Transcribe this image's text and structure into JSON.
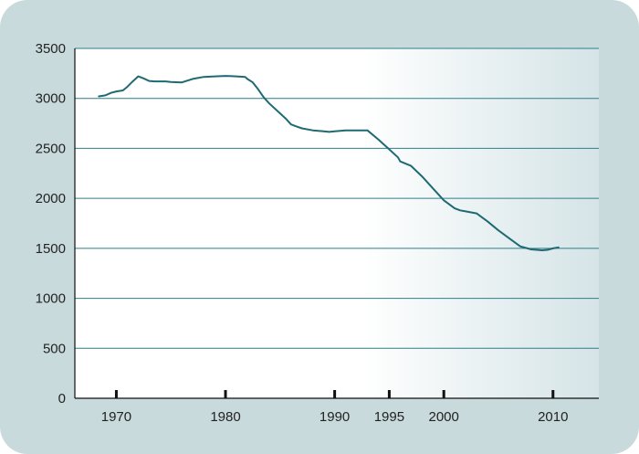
{
  "chart_data": {
    "type": "line",
    "title": "",
    "xlabel": "",
    "ylabel": "",
    "xlim": [
      1966.2,
      2014.2
    ],
    "ylim": [
      0,
      3500
    ],
    "yticks": [
      0,
      500,
      1000,
      1500,
      2000,
      2500,
      3000,
      3500
    ],
    "xticks": [
      1970,
      1980,
      1990,
      1995,
      2000,
      2010
    ],
    "grid": "horizontal",
    "colors": {
      "line": "#1f6a72",
      "grid": "#2c7f88",
      "axis": "#111111",
      "frame": "#c9dadd"
    },
    "series": [
      {
        "x": [
          1968.4,
          1969.0,
          1969.5,
          1970.0,
          1970.6,
          1971.0,
          1971.5,
          1972.0,
          1972.5,
          1973.0,
          1973.5,
          1974.0,
          1974.5,
          1975.0,
          1976.0,
          1977.0,
          1978.0,
          1979.0,
          1980.0,
          1981.0,
          1981.8,
          1982.0,
          1982.5,
          1983.0,
          1983.5,
          1984.0,
          1985.0,
          1985.5,
          1986.0,
          1986.5,
          1987.0,
          1988.0,
          1989.0,
          1989.5,
          1990.0,
          1991.0,
          1992.0,
          1993.0,
          1994.0,
          1995.0,
          1995.8,
          1996.0,
          1997.0,
          1998.0,
          1999.0,
          2000.0,
          2001.0,
          2001.5,
          2002.0,
          2003.0,
          2003.5,
          2004.0,
          2005.0,
          2006.0,
          2006.5,
          2007.0,
          2008.0,
          2009.0,
          2009.5,
          2010.0,
          2010.5
        ],
        "y": [
          3020,
          3030,
          3055,
          3070,
          3080,
          3115,
          3170,
          3220,
          3200,
          3175,
          3170,
          3170,
          3170,
          3165,
          3160,
          3195,
          3215,
          3220,
          3225,
          3220,
          3215,
          3195,
          3160,
          3090,
          3010,
          2950,
          2850,
          2800,
          2740,
          2720,
          2700,
          2680,
          2670,
          2665,
          2670,
          2680,
          2680,
          2680,
          2590,
          2490,
          2410,
          2370,
          2325,
          2220,
          2100,
          1980,
          1900,
          1880,
          1870,
          1850,
          1810,
          1770,
          1680,
          1600,
          1560,
          1520,
          1490,
          1480,
          1485,
          1500,
          1510
        ]
      }
    ]
  }
}
